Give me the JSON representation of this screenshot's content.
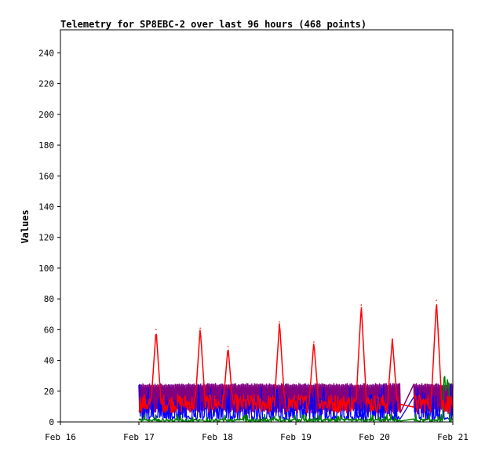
{
  "chart_data": {
    "type": "line",
    "title": "Telemetry for SP8EBC-2 over last 96 hours (468 points)",
    "xlabel": "",
    "ylabel": "Values",
    "x_ticks": [
      "Feb 16",
      "Feb 17",
      "Feb 18",
      "Feb 19",
      "Feb 20",
      "Feb 21"
    ],
    "y_ticks": [
      0,
      20,
      40,
      60,
      80,
      100,
      120,
      140,
      160,
      180,
      200,
      220,
      240
    ],
    "xlim": [
      "Feb 16 00:00",
      "Feb 21 00:00"
    ],
    "ylim": [
      0,
      255
    ],
    "grid": false,
    "legend": "none",
    "data_start": "Feb 17 00:00",
    "data_end": "Feb 21 00:00",
    "gap": [
      "Feb 20 08:00",
      "Feb 20 12:00"
    ],
    "peaks_red": [
      [
        "Feb 17 05:15",
        60
      ],
      [
        "Feb 17 18:45",
        61
      ],
      [
        "Feb 18 03:15",
        49
      ],
      [
        "Feb 18 19:00",
        65
      ],
      [
        "Feb 19 05:30",
        52
      ],
      [
        "Feb 19 20:00",
        76
      ],
      [
        "Feb 20 05:30",
        54
      ],
      [
        "Feb 20 19:00",
        79
      ]
    ],
    "series": [
      {
        "color": "#ff0000",
        "baseline": 12,
        "description": "mostly 5-25, with daily peaks"
      },
      {
        "color": "#800080",
        "range": [
          5,
          25
        ],
        "description": "oscillates ~5 to ~25"
      },
      {
        "color": "#0000ff",
        "range": [
          0,
          25
        ],
        "description": "low, occasional spikes"
      },
      {
        "color": "#008000",
        "range": [
          0,
          5
        ],
        "description": "near zero, peak ~30 at end"
      }
    ]
  }
}
